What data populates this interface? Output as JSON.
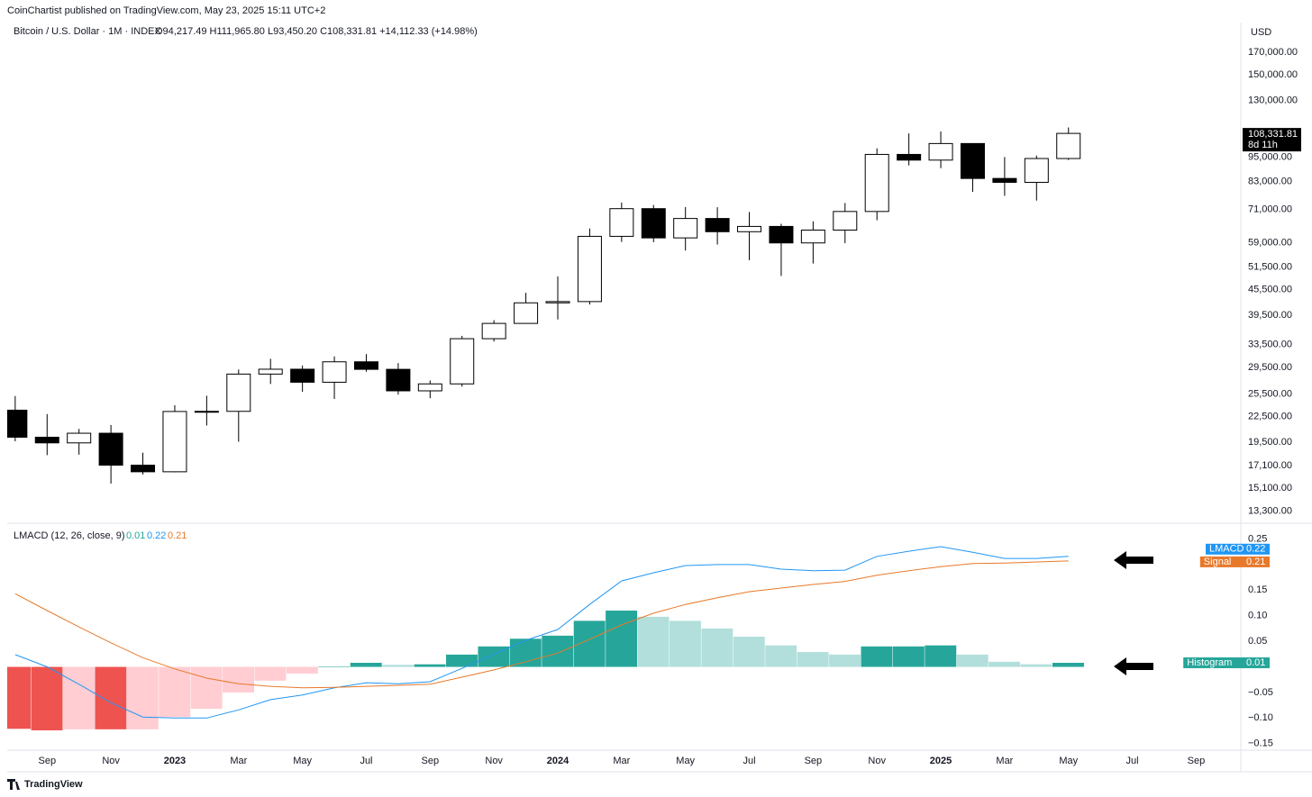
{
  "publisher": "CoinChartist published on TradingView.com, May 23, 2025 15:11 UTC+2",
  "footer": "TradingView",
  "chart_data": [
    {
      "type": "candlestick",
      "title": "Bitcoin / U.S. Dollar · 1M · INDEX",
      "ohlc_label": "O94,217.49 H111,965.80 L93,450.20 C108,331.81 +14,112.33 (+14.98%)",
      "currency": "USD",
      "last_price_label": "108,331.81",
      "countdown": "8d 11h",
      "log_scale": true,
      "up_color": "#ffffff",
      "down_color": "#000000",
      "border_color": "#000000",
      "xlim": [
        -0.25,
        38.4
      ],
      "ylim": [
        12500,
        200500
      ],
      "yticks": [
        {
          "value": 170000,
          "label": "170,000.00"
        },
        {
          "value": 150000,
          "label": "150,000.00"
        },
        {
          "value": 130000,
          "label": "130,000.00"
        },
        {
          "value": 95000,
          "label": "95,000.00"
        },
        {
          "value": 83000,
          "label": "83,000.00"
        },
        {
          "value": 71000,
          "label": "71,000.00"
        },
        {
          "value": 59000,
          "label": "59,000.00"
        },
        {
          "value": 51500,
          "label": "51,500.00"
        },
        {
          "value": 45500,
          "label": "45,500.00"
        },
        {
          "value": 39500,
          "label": "39,500.00"
        },
        {
          "value": 33500,
          "label": "33,500.00"
        },
        {
          "value": 29500,
          "label": "29,500.00"
        },
        {
          "value": 25500,
          "label": "25,500.00"
        },
        {
          "value": 22500,
          "label": "22,500.00"
        },
        {
          "value": 19500,
          "label": "19,500.00"
        },
        {
          "value": 17100,
          "label": "17,100.00"
        },
        {
          "value": 15100,
          "label": "15,100.00"
        },
        {
          "value": 13300,
          "label": "13,300.00"
        }
      ],
      "open": [
        23300,
        20050,
        19430,
        20500,
        17170,
        16550,
        23130,
        23150,
        28470,
        29250,
        27210,
        30480,
        29230,
        25940,
        26960,
        34650,
        37720,
        42280,
        42580,
        61170,
        71330,
        60640,
        67540,
        62760,
        64630,
        58970,
        63330,
        70220,
        96400,
        93400,
        102400,
        84350,
        82550,
        94217.49
      ],
      "high": [
        25200,
        22800,
        21000,
        21450,
        18400,
        23950,
        25250,
        29200,
        31000,
        29850,
        31400,
        31800,
        30250,
        27480,
        35200,
        38400,
        44700,
        48970,
        63900,
        73800,
        72800,
        71950,
        71900,
        70000,
        65600,
        66500,
        73600,
        99700,
        108300,
        109500,
        102500,
        95000,
        95800,
        111965.8
      ],
      "low": [
        19600,
        18150,
        18200,
        15500,
        16300,
        16500,
        21400,
        19550,
        26950,
        25800,
        24800,
        28850,
        25400,
        24900,
        26550,
        34100,
        37650,
        38550,
        41900,
        59300,
        59200,
        56550,
        58450,
        53600,
        49100,
        52600,
        58900,
        66900,
        90700,
        89300,
        78300,
        76600,
        74600,
        93450.2
      ],
      "close": [
        20050,
        19430,
        20500,
        17170,
        16550,
        23130,
        23150,
        28470,
        29250,
        27210,
        30480,
        29230,
        25940,
        26960,
        34650,
        37720,
        42280,
        42580,
        61170,
        71330,
        60640,
        67540,
        62760,
        64630,
        58970,
        63330,
        70220,
        96400,
        93400,
        102400,
        84350,
        82550,
        94217.49,
        108331.81
      ]
    },
    {
      "type": "combo",
      "title": "LMACD (12, 26, close, 9)",
      "xlim": [
        -0.25,
        38.4
      ],
      "xticks": [
        {
          "value": 1,
          "label": "Sep"
        },
        {
          "value": 3,
          "label": "Nov"
        },
        {
          "value": 5,
          "label": "2023"
        },
        {
          "value": 7,
          "label": "Mar"
        },
        {
          "value": 9,
          "label": "May"
        },
        {
          "value": 11,
          "label": "Jul"
        },
        {
          "value": 13,
          "label": "Sep"
        },
        {
          "value": 15,
          "label": "Nov"
        },
        {
          "value": 17,
          "label": "2024"
        },
        {
          "value": 19,
          "label": "Mar"
        },
        {
          "value": 21,
          "label": "May"
        },
        {
          "value": 23,
          "label": "Jul"
        },
        {
          "value": 25,
          "label": "Sep"
        },
        {
          "value": 27,
          "label": "Nov"
        },
        {
          "value": 29,
          "label": "2025"
        },
        {
          "value": 31,
          "label": "Mar"
        },
        {
          "value": 33,
          "label": "May"
        },
        {
          "value": 35,
          "label": "Jul"
        },
        {
          "value": 37,
          "label": "Sep"
        }
      ],
      "ylim": [
        -0.161,
        0.279
      ],
      "yticks": [
        0.25,
        0.15,
        {
          "value": 0.1,
          "label": "0.10"
        },
        0.05,
        {
          "value": -0.05,
          "label": "−0.05"
        },
        {
          "value": -0.1,
          "label": "−0.10"
        },
        {
          "value": -0.15,
          "label": "−0.15"
        }
      ],
      "series": [
        {
          "name": "Histogram",
          "type": "bar",
          "last_label": "0.01",
          "color": "#26a69a",
          "values": [
            -0.121,
            -0.124,
            -0.122,
            -0.122,
            -0.122,
            -0.098,
            -0.082,
            -0.05,
            -0.027,
            -0.013,
            0.001,
            0.008,
            0.004,
            0.005,
            0.024,
            0.04,
            0.055,
            0.061,
            0.09,
            0.11,
            0.098,
            0.09,
            0.075,
            0.059,
            0.042,
            0.029,
            0.024,
            0.04,
            0.04,
            0.042,
            0.024,
            0.01,
            0.005,
            0.008
          ],
          "colors": [
            "#ef5350",
            "#ef5350",
            "#ffcdd2",
            "#ef5350",
            "#ffcdd2",
            "#ffcdd2",
            "#ffcdd2",
            "#ffcdd2",
            "#ffcdd2",
            "#ffcdd2",
            "#26a69a",
            "#26a69a",
            "#b2dfdb",
            "#26a69a",
            "#26a69a",
            "#26a69a",
            "#26a69a",
            "#26a69a",
            "#26a69a",
            "#26a69a",
            "#b2dfdb",
            "#b2dfdb",
            "#b2dfdb",
            "#b2dfdb",
            "#b2dfdb",
            "#b2dfdb",
            "#b2dfdb",
            "#26a69a",
            "#26a69a",
            "#26a69a",
            "#b2dfdb",
            "#b2dfdb",
            "#b2dfdb",
            "#26a69a"
          ]
        },
        {
          "name": "LMACD",
          "type": "line",
          "last_label": "0.22",
          "color": "#2196f3",
          "values": [
            0.024,
            0.0,
            -0.034,
            -0.07,
            -0.098,
            -0.1,
            -0.1,
            -0.084,
            -0.064,
            -0.055,
            -0.041,
            -0.031,
            -0.033,
            -0.029,
            -0.003,
            0.025,
            0.052,
            0.073,
            0.122,
            0.168,
            0.184,
            0.198,
            0.2,
            0.2,
            0.191,
            0.188,
            0.189,
            0.216,
            0.226,
            0.235,
            0.224,
            0.212,
            0.212,
            0.216
          ]
        },
        {
          "name": "Signal",
          "type": "line",
          "last_label": "0.21",
          "color": "#e8792a",
          "values": [
            0.143,
            0.11,
            0.078,
            0.047,
            0.018,
            -0.004,
            -0.022,
            -0.033,
            -0.038,
            -0.041,
            -0.04,
            -0.038,
            -0.036,
            -0.034,
            -0.02,
            -0.006,
            0.01,
            0.027,
            0.054,
            0.082,
            0.105,
            0.122,
            0.135,
            0.147,
            0.154,
            0.161,
            0.167,
            0.179,
            0.188,
            0.196,
            0.202,
            0.203,
            0.205,
            0.207
          ]
        }
      ]
    }
  ]
}
